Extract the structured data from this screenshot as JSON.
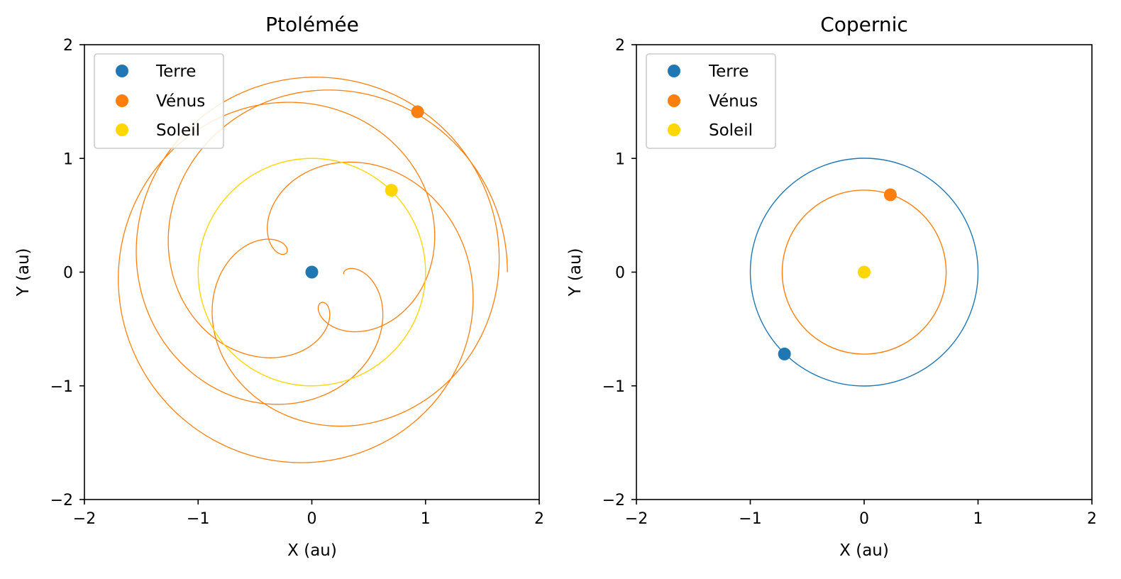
{
  "chart_data": [
    {
      "type": "line",
      "title": "Ptolémée",
      "xlabel": "X (au)",
      "ylabel": "Y (au)",
      "xlim": [
        -2,
        2
      ],
      "ylim": [
        -2,
        2
      ],
      "xticks": [
        "−2",
        "−1",
        "0",
        "1",
        "2"
      ],
      "yticks": [
        "−2",
        "−1",
        "0",
        "1",
        "2"
      ],
      "grid": false,
      "legend_position": "top-left",
      "legend": [
        "Terre",
        "Vénus",
        "Soleil"
      ],
      "series": [
        {
          "name": "Vénus",
          "color": "#ff7f0e",
          "kind": "epicycle-path",
          "deferent_radius_au": 1.0,
          "epicycle_radius_au": 0.72,
          "orbit_periods": 4,
          "marker": {
            "x": 0.93,
            "y": 1.41
          }
        },
        {
          "name": "Soleil",
          "color": "#ffd700",
          "kind": "circle-path",
          "radius_au": 1.0,
          "marker": {
            "x": 0.7,
            "y": 0.72
          }
        },
        {
          "name": "Terre",
          "color": "#1f77b4",
          "kind": "point",
          "marker": {
            "x": 0.0,
            "y": 0.0
          }
        }
      ]
    },
    {
      "type": "line",
      "title": "Copernic",
      "xlabel": "X (au)",
      "ylabel": "Y (au)",
      "xlim": [
        -2,
        2
      ],
      "ylim": [
        -2,
        2
      ],
      "xticks": [
        "−2",
        "−1",
        "0",
        "1",
        "2"
      ],
      "yticks": [
        "−2",
        "−1",
        "0",
        "1",
        "2"
      ],
      "grid": false,
      "legend_position": "top-left",
      "legend": [
        "Terre",
        "Vénus",
        "Soleil"
      ],
      "series": [
        {
          "name": "Terre",
          "color": "#1f77b4",
          "kind": "circle-path",
          "radius_au": 1.0,
          "marker": {
            "x": -0.7,
            "y": -0.72
          }
        },
        {
          "name": "Vénus",
          "color": "#ff7f0e",
          "kind": "circle-path",
          "radius_au": 0.72,
          "marker": {
            "x": 0.23,
            "y": 0.68
          }
        },
        {
          "name": "Soleil",
          "color": "#ffd700",
          "kind": "point",
          "marker": {
            "x": 0.0,
            "y": 0.0
          }
        }
      ]
    }
  ]
}
